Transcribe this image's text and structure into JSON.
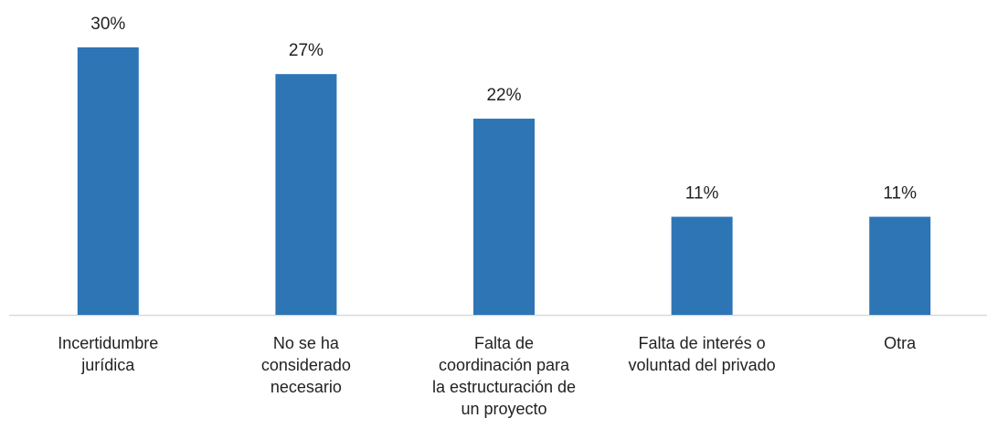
{
  "chart_data": {
    "type": "bar",
    "categories": [
      "Incertidumbre\njurídica",
      "No se ha\nconsiderado\nnecesario",
      "Falta de\ncoordinación para\nla estructuración de\nun proyecto",
      "Falta de interés o\nvoluntad del privado",
      "Otra"
    ],
    "values": [
      30,
      27,
      22,
      11,
      11
    ],
    "value_labels": [
      "30%",
      "27%",
      "22%",
      "11%",
      "11%"
    ],
    "color": "#2e75b6",
    "ylim": [
      0,
      35
    ]
  }
}
